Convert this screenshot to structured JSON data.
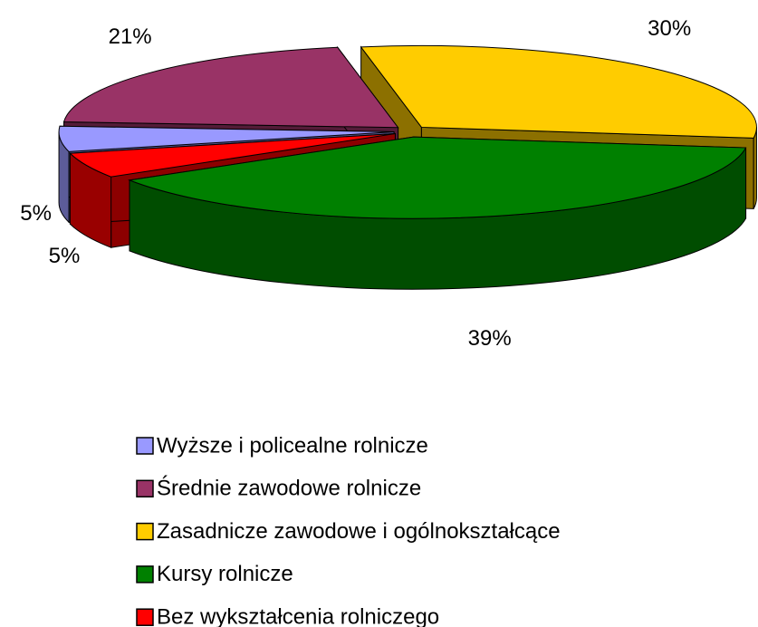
{
  "chart_data": {
    "type": "pie3d",
    "categories": [
      "Wyższe i policealne rolnicze",
      "Średnie zawodowe rolnicze",
      "Zasadnicze zawodowe i ogólnokształcące",
      "Kursy rolnicze",
      "Bez wykształcenia rolniczego"
    ],
    "values": [
      5,
      21,
      30,
      39,
      5
    ],
    "value_labels": [
      "5%",
      "21%",
      "30%",
      "39%",
      "5%"
    ],
    "colors": [
      "#9999ff",
      "#993366",
      "#ffcc00",
      "#008000",
      "#ff0000"
    ],
    "legend": "bottom"
  }
}
